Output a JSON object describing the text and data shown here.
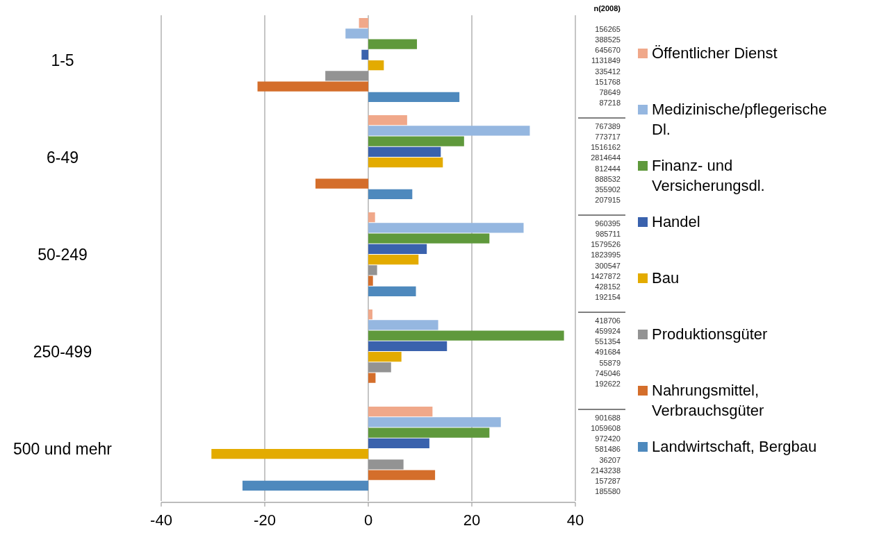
{
  "chart_data": {
    "type": "bar",
    "orientation": "horizontal",
    "categories": [
      "1-5",
      "6-49",
      "50-249",
      "250-499",
      "500 und mehr"
    ],
    "series": [
      {
        "name": "Öffentlicher Dienst",
        "color": "#f0a88a",
        "values": [
          -1.8,
          7.5,
          1.3,
          0.8,
          12.4
        ]
      },
      {
        "name": "Medizinische/pflegerische Dl.",
        "color": "#95b7e0",
        "values": [
          -4.4,
          31.2,
          30.0,
          13.5,
          25.6
        ]
      },
      {
        "name": "Finanz- und Versicherungsdl.",
        "color": "#5f993c",
        "values": [
          9.4,
          18.5,
          23.4,
          37.8,
          23.4
        ]
      },
      {
        "name": "Handel",
        "color": "#3a62ad",
        "values": [
          -1.3,
          14.0,
          11.3,
          15.2,
          11.8
        ]
      },
      {
        "name": "Bau",
        "color": "#e3ab00",
        "values": [
          3.0,
          14.4,
          9.7,
          6.4,
          -30.3
        ]
      },
      {
        "name": "Produktionsgüter",
        "color": "#939393",
        "values": [
          -8.3,
          0,
          1.7,
          4.4,
          6.8
        ]
      },
      {
        "name": "Nahrungsmittel, Verbrauchsgüter",
        "color": "#d46e2b",
        "values": [
          -21.4,
          -10.2,
          0.9,
          1.4,
          12.9
        ]
      },
      {
        "name": "Landwirtschaft, Bergbau",
        "color": "#4e89bd",
        "values": [
          17.6,
          8.5,
          9.2,
          null,
          -24.3
        ]
      }
    ],
    "xlim": [
      -40,
      40
    ],
    "xticks": [
      -40,
      -20,
      0,
      20,
      40
    ],
    "grid": "x",
    "legend": "right",
    "annotations": [
      "n(2008)",
      "156265",
      "388525",
      "645670",
      "1131849",
      "335412",
      "151768",
      "78649",
      "87218",
      "767389",
      "773717",
      "1516162",
      "2814644",
      "812444",
      "888532",
      "355902",
      "207915",
      "960395",
      "985711",
      "1579526",
      "1823995",
      "300547",
      "1427872",
      "428152",
      "192154",
      "418706",
      "459924",
      "551354",
      "491684",
      "55879",
      "745046",
      "192622",
      "901688",
      "1059608",
      "972420",
      "581486",
      "36207",
      "2143238",
      "157287",
      "185580"
    ]
  }
}
